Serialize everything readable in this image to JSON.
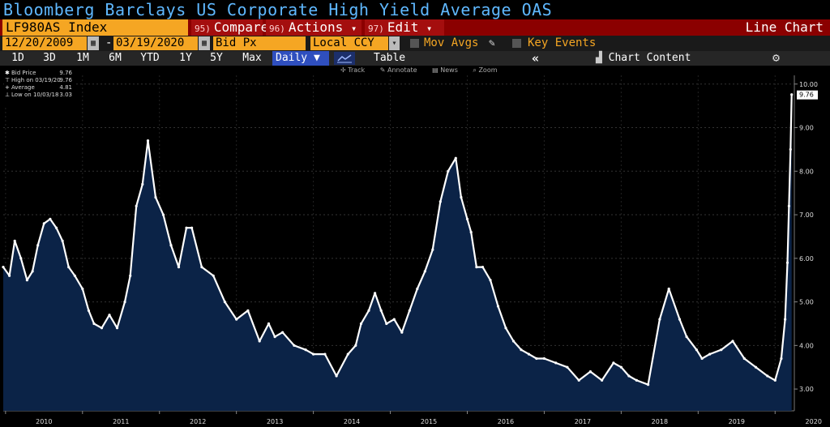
{
  "window": {
    "title": "Bloomberg Barclays US Corporate High Yield Average OAS"
  },
  "toolbar": {
    "ticker": "LF980AS Index",
    "compare": {
      "num": "95)",
      "label": "Compare"
    },
    "actions": {
      "num": "96)",
      "label": "Actions",
      "arrow": "▾"
    },
    "edit": {
      "num": "97)",
      "label": "Edit",
      "arrow": "▾"
    },
    "chart_type_label": "Line Chart"
  },
  "options": {
    "start_date": "12/20/2009",
    "dash": "-",
    "end_date": "03/19/2020",
    "field": "Bid Px",
    "currency": "Local CCY",
    "mov_avgs": "Mov Avgs",
    "key_events": "Key Events"
  },
  "periods": [
    "1D",
    "3D",
    "1M",
    "6M",
    "YTD",
    "1Y",
    "5Y",
    "Max"
  ],
  "view": {
    "frequency": "Daily",
    "table_label": "Table",
    "collapse": "«",
    "chart_content": "Chart Content"
  },
  "chart_tools": [
    "Track",
    "Annotate",
    "News",
    "Zoom"
  ],
  "legend": {
    "rows": [
      {
        "label": "Bid Price",
        "value": "9.76"
      },
      {
        "label": "High on 03/19/20",
        "value": "9.76"
      },
      {
        "label": "Average",
        "value": "4.81"
      },
      {
        "label": "Low on 10/03/18",
        "value": "3.03"
      }
    ]
  },
  "colors": {
    "accent_orange": "#f5a623",
    "title_blue": "#5fb8ff",
    "menu_red": "#a40e0e",
    "area_fill": "#0b2347",
    "line": "#ffffff"
  },
  "chart_data": {
    "type": "area",
    "title": "Bloomberg Barclays US Corporate High Yield Average OAS",
    "ylabel": "",
    "xlabel": "",
    "ylim": [
      2.5,
      10.2
    ],
    "xlim": [
      2009.97,
      2020.25
    ],
    "y_ticks": [
      "3.00",
      "4.00",
      "5.00",
      "6.00",
      "7.00",
      "8.00",
      "9.00",
      "10.00"
    ],
    "x_ticks": [
      "2010",
      "2011",
      "2012",
      "2013",
      "2014",
      "2015",
      "2016",
      "2017",
      "2018",
      "2019",
      "2020"
    ],
    "last_value_label": "9.76",
    "series": [
      {
        "name": "Bid Price",
        "x": [
          2009.97,
          2010.05,
          2010.12,
          2010.2,
          2010.28,
          2010.35,
          2010.42,
          2010.5,
          2010.58,
          2010.66,
          2010.74,
          2010.82,
          2010.9,
          2011.0,
          2011.08,
          2011.15,
          2011.25,
          2011.35,
          2011.45,
          2011.55,
          2011.62,
          2011.7,
          2011.78,
          2011.85,
          2011.95,
          2012.05,
          2012.15,
          2012.25,
          2012.35,
          2012.42,
          2012.55,
          2012.7,
          2012.85,
          2013.0,
          2013.15,
          2013.3,
          2013.42,
          2013.5,
          2013.6,
          2013.75,
          2013.9,
          2014.0,
          2014.15,
          2014.3,
          2014.45,
          2014.55,
          2014.62,
          2014.72,
          2014.8,
          2014.88,
          2014.95,
          2015.05,
          2015.15,
          2015.25,
          2015.35,
          2015.45,
          2015.55,
          2015.65,
          2015.75,
          2015.85,
          2015.92,
          2016.0,
          2016.05,
          2016.12,
          2016.2,
          2016.3,
          2016.4,
          2016.5,
          2016.6,
          2016.7,
          2016.8,
          2016.9,
          2017.0,
          2017.15,
          2017.3,
          2017.45,
          2017.6,
          2017.75,
          2017.9,
          2018.0,
          2018.1,
          2018.2,
          2018.35,
          2018.5,
          2018.62,
          2018.76,
          2018.85,
          2018.98,
          2019.05,
          2019.15,
          2019.3,
          2019.45,
          2019.6,
          2019.75,
          2019.9,
          2020.0,
          2020.08,
          2020.13,
          2020.16,
          2020.18,
          2020.2,
          2020.215
        ],
        "y": [
          5.8,
          5.6,
          6.4,
          6.0,
          5.5,
          5.7,
          6.3,
          6.8,
          6.9,
          6.7,
          6.4,
          5.8,
          5.6,
          5.3,
          4.8,
          4.5,
          4.4,
          4.7,
          4.4,
          5.0,
          5.6,
          7.2,
          7.7,
          8.7,
          7.4,
          7.0,
          6.3,
          5.8,
          6.7,
          6.7,
          5.8,
          5.6,
          5.0,
          4.6,
          4.8,
          4.1,
          4.5,
          4.2,
          4.3,
          4.0,
          3.9,
          3.8,
          3.8,
          3.3,
          3.8,
          4.0,
          4.5,
          4.8,
          5.2,
          4.8,
          4.5,
          4.6,
          4.3,
          4.8,
          5.3,
          5.7,
          6.2,
          7.3,
          8.0,
          8.3,
          7.4,
          6.9,
          6.6,
          5.8,
          5.8,
          5.5,
          4.9,
          4.4,
          4.1,
          3.9,
          3.8,
          3.7,
          3.7,
          3.6,
          3.5,
          3.2,
          3.4,
          3.2,
          3.6,
          3.5,
          3.3,
          3.2,
          3.1,
          4.6,
          5.3,
          4.6,
          4.2,
          3.9,
          3.7,
          3.8,
          3.9,
          4.1,
          3.7,
          3.5,
          3.3,
          3.2,
          3.7,
          4.6,
          5.9,
          7.2,
          8.5,
          9.76
        ]
      }
    ]
  }
}
